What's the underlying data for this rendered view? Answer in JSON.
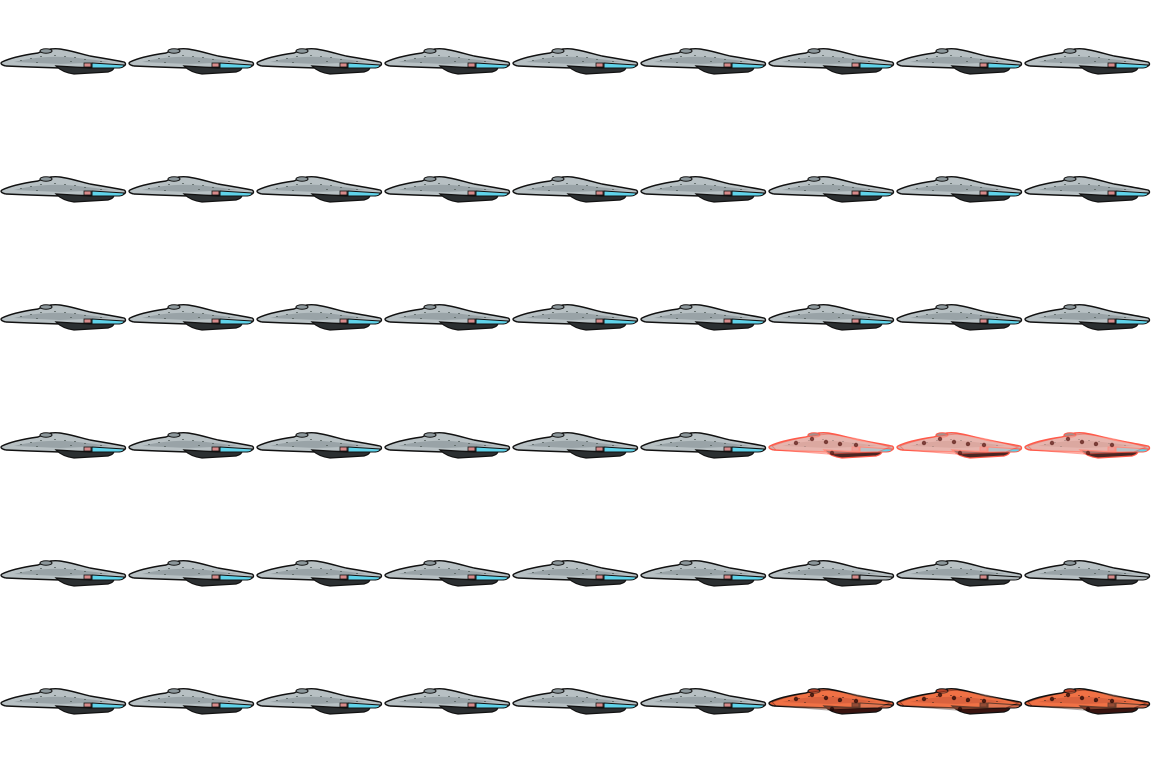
{
  "sheet": {
    "rows": 6,
    "columns": 9,
    "palette": {
      "background": "#ffffff",
      "hull_light": "#b7c0c3",
      "hull_mid": "#8c979b",
      "hull_dark": "#2b2f31",
      "outline": "#111111",
      "nacelle_glow": "#5fd3ea",
      "window": "#d8dde0",
      "damage_red": "#ff5a4a",
      "damage_glow": "#ffb3a8",
      "burn_orange": "#e8643a",
      "burn_dark": "#3a1410"
    },
    "sprite_rows": [
      {
        "states": [
          "normal",
          "normal",
          "normal",
          "normal",
          "normal",
          "normal",
          "normal",
          "normal",
          "normal"
        ]
      },
      {
        "states": [
          "normal",
          "normal",
          "normal",
          "normal",
          "normal",
          "normal",
          "normal",
          "normal",
          "normal"
        ]
      },
      {
        "states": [
          "normal",
          "normal",
          "normal",
          "normal",
          "normal",
          "normal",
          "normal",
          "normal",
          "normal"
        ]
      },
      {
        "states": [
          "normal",
          "normal",
          "normal",
          "normal",
          "normal",
          "normal",
          "damaged",
          "damaged",
          "damaged"
        ]
      },
      {
        "states": [
          "normal",
          "normal",
          "normal",
          "normal",
          "normal",
          "normal",
          "unpowered",
          "unpowered",
          "unpowered"
        ]
      },
      {
        "states": [
          "normal",
          "normal",
          "normal",
          "normal",
          "normal",
          "normal",
          "burning",
          "burning",
          "burning"
        ]
      }
    ]
  }
}
